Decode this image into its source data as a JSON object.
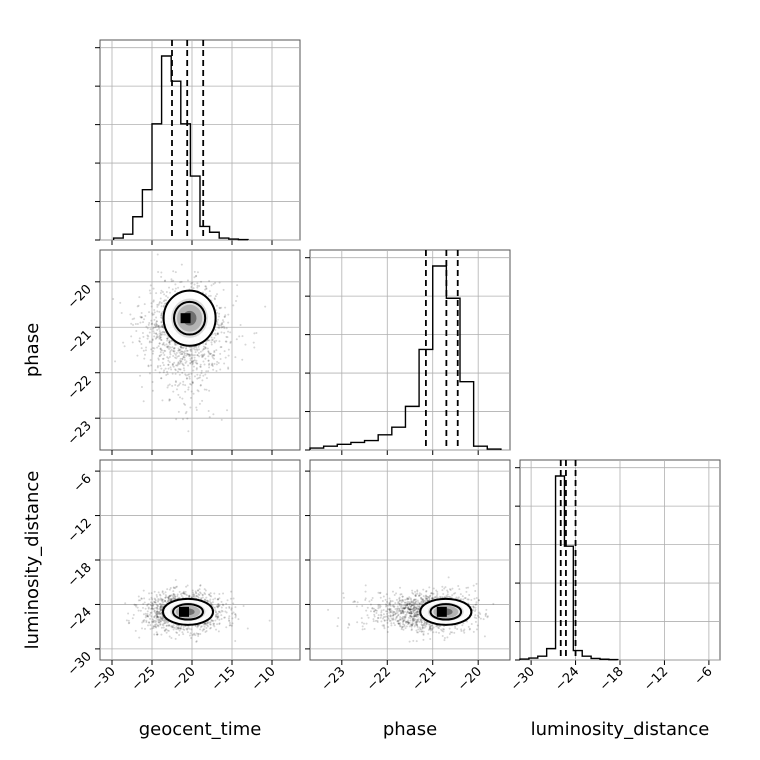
{
  "chart_data": {
    "type": "corner",
    "parameters": [
      "geocent_time",
      "phase",
      "luminosity_distance"
    ],
    "axis_labels": {
      "geocent_time": "geocent_time",
      "phase": "phase",
      "luminosity_distance": "luminosity_distance"
    },
    "ranges": {
      "geocent_time": [
        -31.5,
        -6.5
      ],
      "phase": [
        -23.7,
        -19.3
      ],
      "luminosity_distance": [
        -31.5,
        -4.5
      ]
    },
    "ticks": {
      "geocent_time": [
        -30,
        -25,
        -20,
        -15,
        -10
      ],
      "phase": [
        -23,
        -22,
        -21,
        -20
      ],
      "luminosity_distance": [
        -30,
        -24,
        -18,
        -12,
        -6
      ]
    },
    "tick_labels": {
      "geocent_time": [
        "−30",
        "−25",
        "−20",
        "−15",
        "−10"
      ],
      "phase": [
        "−23",
        "−22",
        "−21",
        "−20"
      ],
      "luminosity_distance": [
        "−30",
        "−24",
        "−18",
        "−12",
        "−6"
      ]
    },
    "histograms": {
      "geocent_time": {
        "edges": [
          -29.8,
          -28.6,
          -27.4,
          -26.2,
          -25.0,
          -23.8,
          -22.6,
          -21.4,
          -20.2,
          -19.0,
          -17.8,
          -16.6,
          -15.4,
          -14.2,
          -13.0
        ],
        "counts": [
          0.01,
          0.03,
          0.12,
          0.26,
          0.6,
          0.95,
          0.82,
          0.6,
          0.33,
          0.07,
          0.04,
          0.01,
          0.005,
          0.002
        ],
        "quantiles": [
          -22.5,
          -20.6,
          -18.6
        ]
      },
      "phase": {
        "edges": [
          -23.7,
          -23.4,
          -23.1,
          -22.8,
          -22.5,
          -22.2,
          -21.9,
          -21.6,
          -21.3,
          -21.0,
          -20.7,
          -20.4,
          -20.1,
          -19.8,
          -19.5
        ],
        "counts": [
          0.01,
          0.02,
          0.03,
          0.04,
          0.05,
          0.08,
          0.12,
          0.23,
          0.53,
          0.97,
          0.8,
          0.36,
          0.02,
          0.005
        ],
        "quantiles": [
          -21.15,
          -20.7,
          -20.45
        ]
      },
      "luminosity_distance": {
        "edges": [
          -31.5,
          -30.3,
          -29.1,
          -27.9,
          -26.7,
          -25.5,
          -24.3,
          -23.1,
          -21.9,
          -20.7,
          -19.5,
          -18.3
        ],
        "counts": [
          0.005,
          0.01,
          0.02,
          0.06,
          0.97,
          0.6,
          0.05,
          0.02,
          0.008,
          0.004,
          0.002
        ],
        "quantiles": [
          -26.0,
          -25.3,
          -24.0
        ]
      }
    },
    "joint": [
      {
        "x": "geocent_time",
        "y": "phase",
        "peak": [
          -20.8,
          -20.8
        ],
        "spread": [
          2.6,
          0.45
        ]
      },
      {
        "x": "geocent_time",
        "y": "luminosity_distance",
        "peak": [
          -21.0,
          -25.0
        ],
        "spread": [
          2.5,
          1.3
        ]
      },
      {
        "x": "phase",
        "y": "luminosity_distance",
        "peak": [
          -20.8,
          -25.0
        ],
        "spread": [
          0.45,
          1.3
        ]
      }
    ],
    "grid": true,
    "contour_levels": 2
  }
}
